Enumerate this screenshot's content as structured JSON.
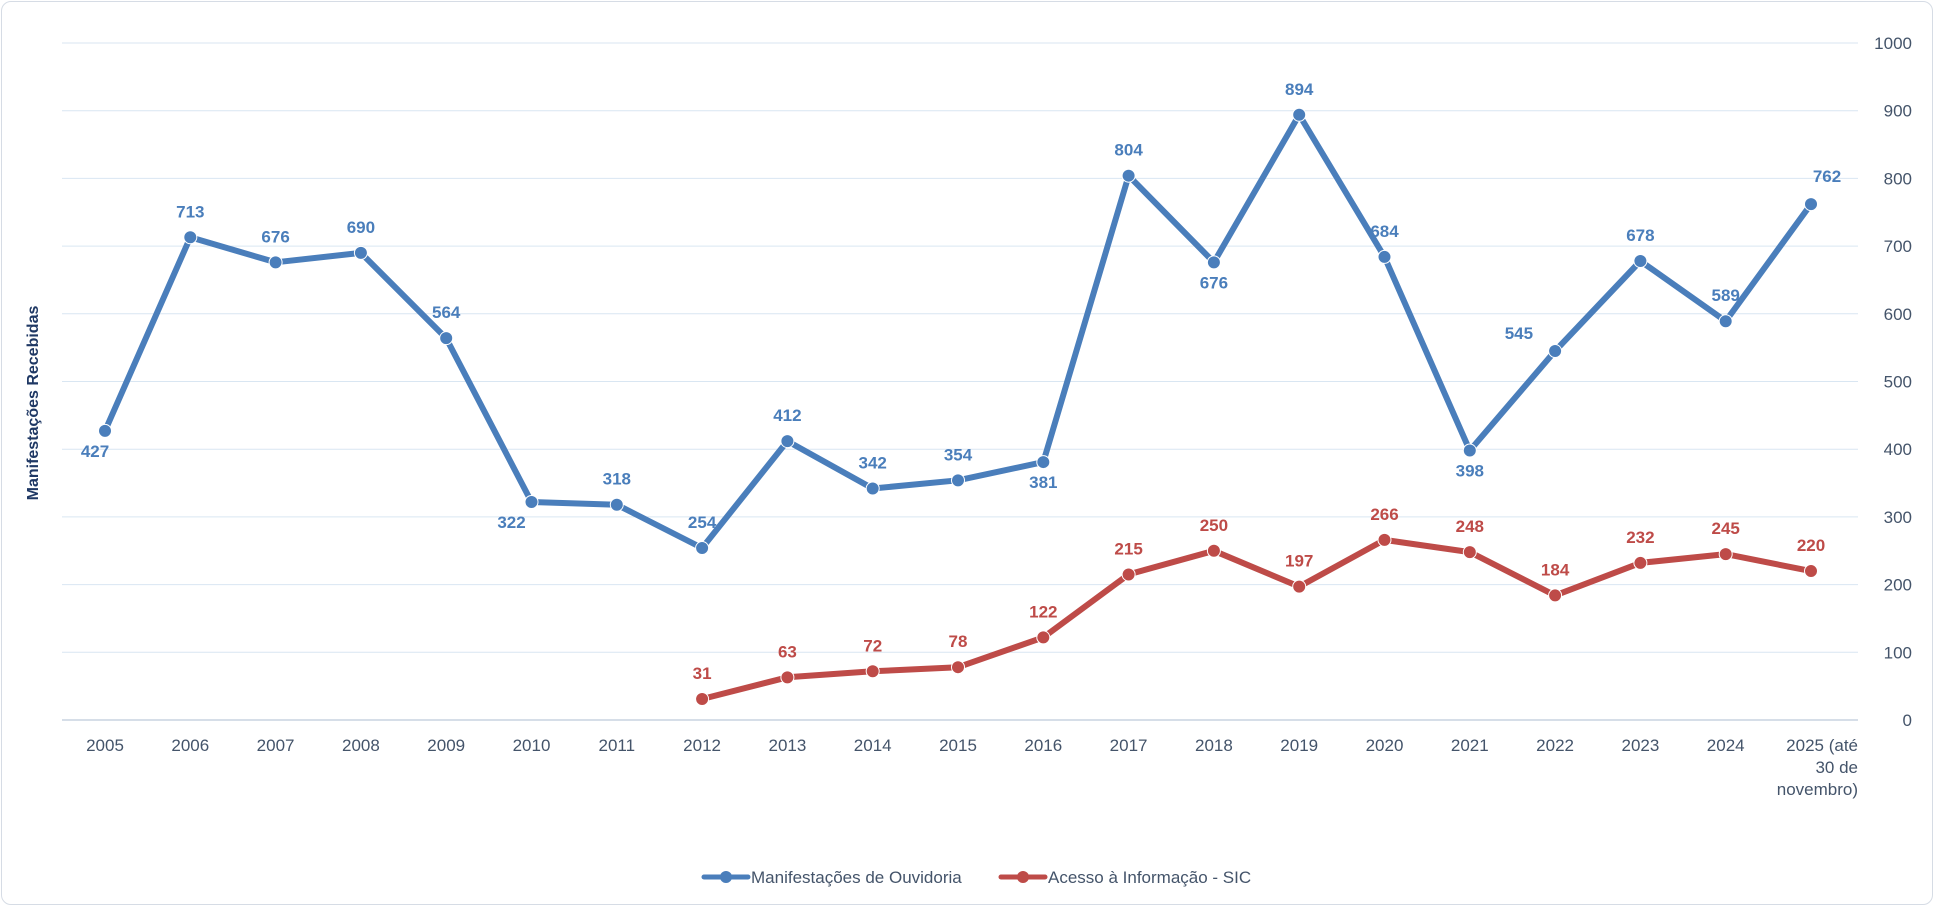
{
  "chart_data": {
    "type": "line",
    "title": "",
    "xlabel": "",
    "ylabel": "Manifestações Recebidas",
    "ylim": [
      0,
      1000
    ],
    "yticks": [
      0,
      100,
      200,
      300,
      400,
      500,
      600,
      700,
      800,
      900,
      1000
    ],
    "y_axis_side": "right",
    "grid": true,
    "legend_position": "bottom",
    "categories": [
      "2005",
      "2006",
      "2007",
      "2008",
      "2009",
      "2010",
      "2011",
      "2012",
      "2013",
      "2014",
      "2015",
      "2016",
      "2017",
      "2018",
      "2019",
      "2020",
      "2021",
      "2022",
      "2023",
      "2024",
      "2025 (até 30 de novembro)"
    ],
    "category_lines": [
      [
        "2005"
      ],
      [
        "2006"
      ],
      [
        "2007"
      ],
      [
        "2008"
      ],
      [
        "2009"
      ],
      [
        "2010"
      ],
      [
        "2011"
      ],
      [
        "2012"
      ],
      [
        "2013"
      ],
      [
        "2014"
      ],
      [
        "2015"
      ],
      [
        "2016"
      ],
      [
        "2017"
      ],
      [
        "2018"
      ],
      [
        "2019"
      ],
      [
        "2020"
      ],
      [
        "2021"
      ],
      [
        "2022"
      ],
      [
        "2023"
      ],
      [
        "2024"
      ],
      [
        "2025 (até",
        "30 de",
        "novembro)"
      ]
    ],
    "series": [
      {
        "name": "Manifestações de Ouvidoria",
        "color": "#4a7ebb",
        "label_color": "#4a7ebb",
        "values": [
          427,
          713,
          676,
          690,
          564,
          322,
          318,
          254,
          412,
          342,
          354,
          381,
          804,
          676,
          894,
          684,
          398,
          545,
          678,
          589,
          762
        ],
        "label_pos": [
          "below",
          "above",
          "above",
          "above",
          "above",
          "below",
          "above",
          "above",
          "above",
          "above",
          "above",
          "below",
          "above",
          "below",
          "above",
          "above",
          "below",
          "left",
          "above",
          "above",
          "above"
        ]
      },
      {
        "name": "Acesso à Informação - SIC",
        "color": "#be4b48",
        "label_color": "#be4b48",
        "values": [
          null,
          null,
          null,
          null,
          null,
          null,
          null,
          31,
          63,
          72,
          78,
          122,
          215,
          250,
          197,
          266,
          248,
          184,
          232,
          245,
          220
        ],
        "label_pos": [
          "above",
          "above",
          "above",
          "above",
          "above",
          "above",
          "above",
          "above",
          "above",
          "above",
          "above",
          "above",
          "above",
          "above",
          "above",
          "above",
          "above",
          "above",
          "above",
          "above",
          "above"
        ]
      }
    ]
  }
}
